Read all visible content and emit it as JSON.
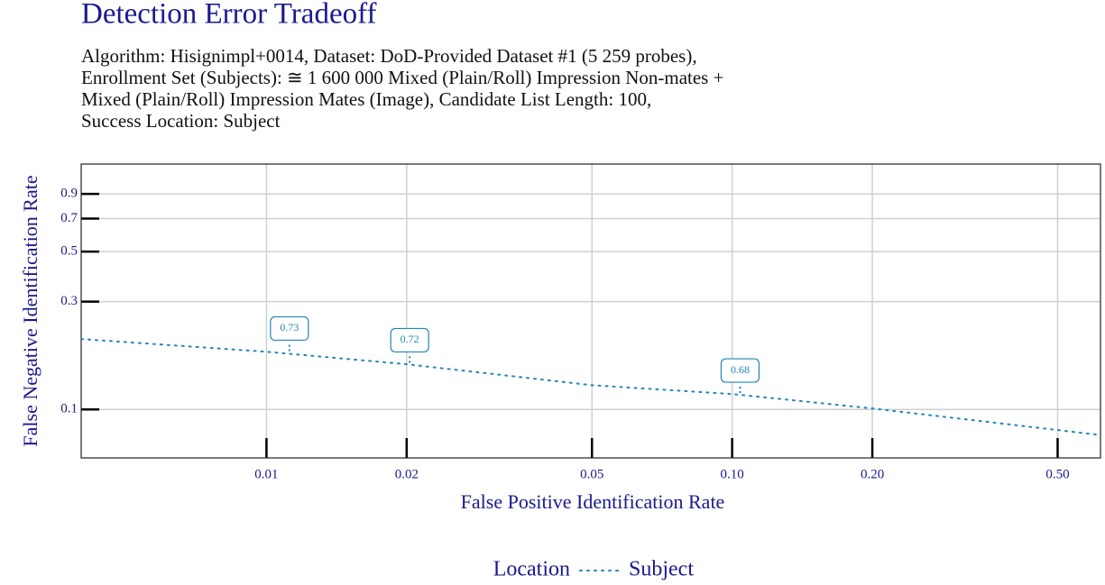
{
  "chart_data": {
    "type": "line",
    "title": "Detection Error Tradeoff",
    "subtitle": [
      "Algorithm: Hisignimpl+0014, Dataset: DoD-Provided Dataset #1 (5 259 probes),",
      "Enrollment Set (Subjects): ≅ 1 600 000 Mixed (Plain/Roll) Impression Non-mates +",
      "Mixed (Plain/Roll) Impression Mates (Image), Candidate List Length: 100,",
      "Success Location: Subject"
    ],
    "x_label": "False Positive Identification Rate",
    "y_label": "False Negative Identification Rate",
    "x_scale": "log",
    "y_scale": "log",
    "xlim": [
      0.004,
      0.618
    ],
    "ylim": [
      0.061,
      1.22
    ],
    "xticks": [
      0.01,
      0.02,
      0.05,
      {
        "value": 0.1,
        "label": "0.10"
      },
      {
        "value": 0.2,
        "label": "0.20"
      },
      {
        "value": 0.5,
        "label": "0.50"
      }
    ],
    "yticks": [
      0.1,
      0.3,
      0.5,
      0.7,
      0.9
    ],
    "grid": true,
    "legend_title": "Location",
    "legend_position": "bottom",
    "x": [
      0.004,
      0.01,
      0.02,
      0.05,
      0.1,
      0.2,
      0.618
    ],
    "series": [
      {
        "name": "Subject",
        "color": "#1f86b8",
        "values": [
          0.205,
          0.18,
          0.1585,
          0.128,
          0.117,
          0.101,
          0.077
        ]
      }
    ],
    "annotations": [
      {
        "x": 0.0112,
        "y": 0.178,
        "label": "0.73"
      },
      {
        "x": 0.0203,
        "y": 0.158,
        "label": "0.72"
      },
      {
        "x": 0.104,
        "y": 0.116,
        "label": "0.68"
      }
    ]
  }
}
